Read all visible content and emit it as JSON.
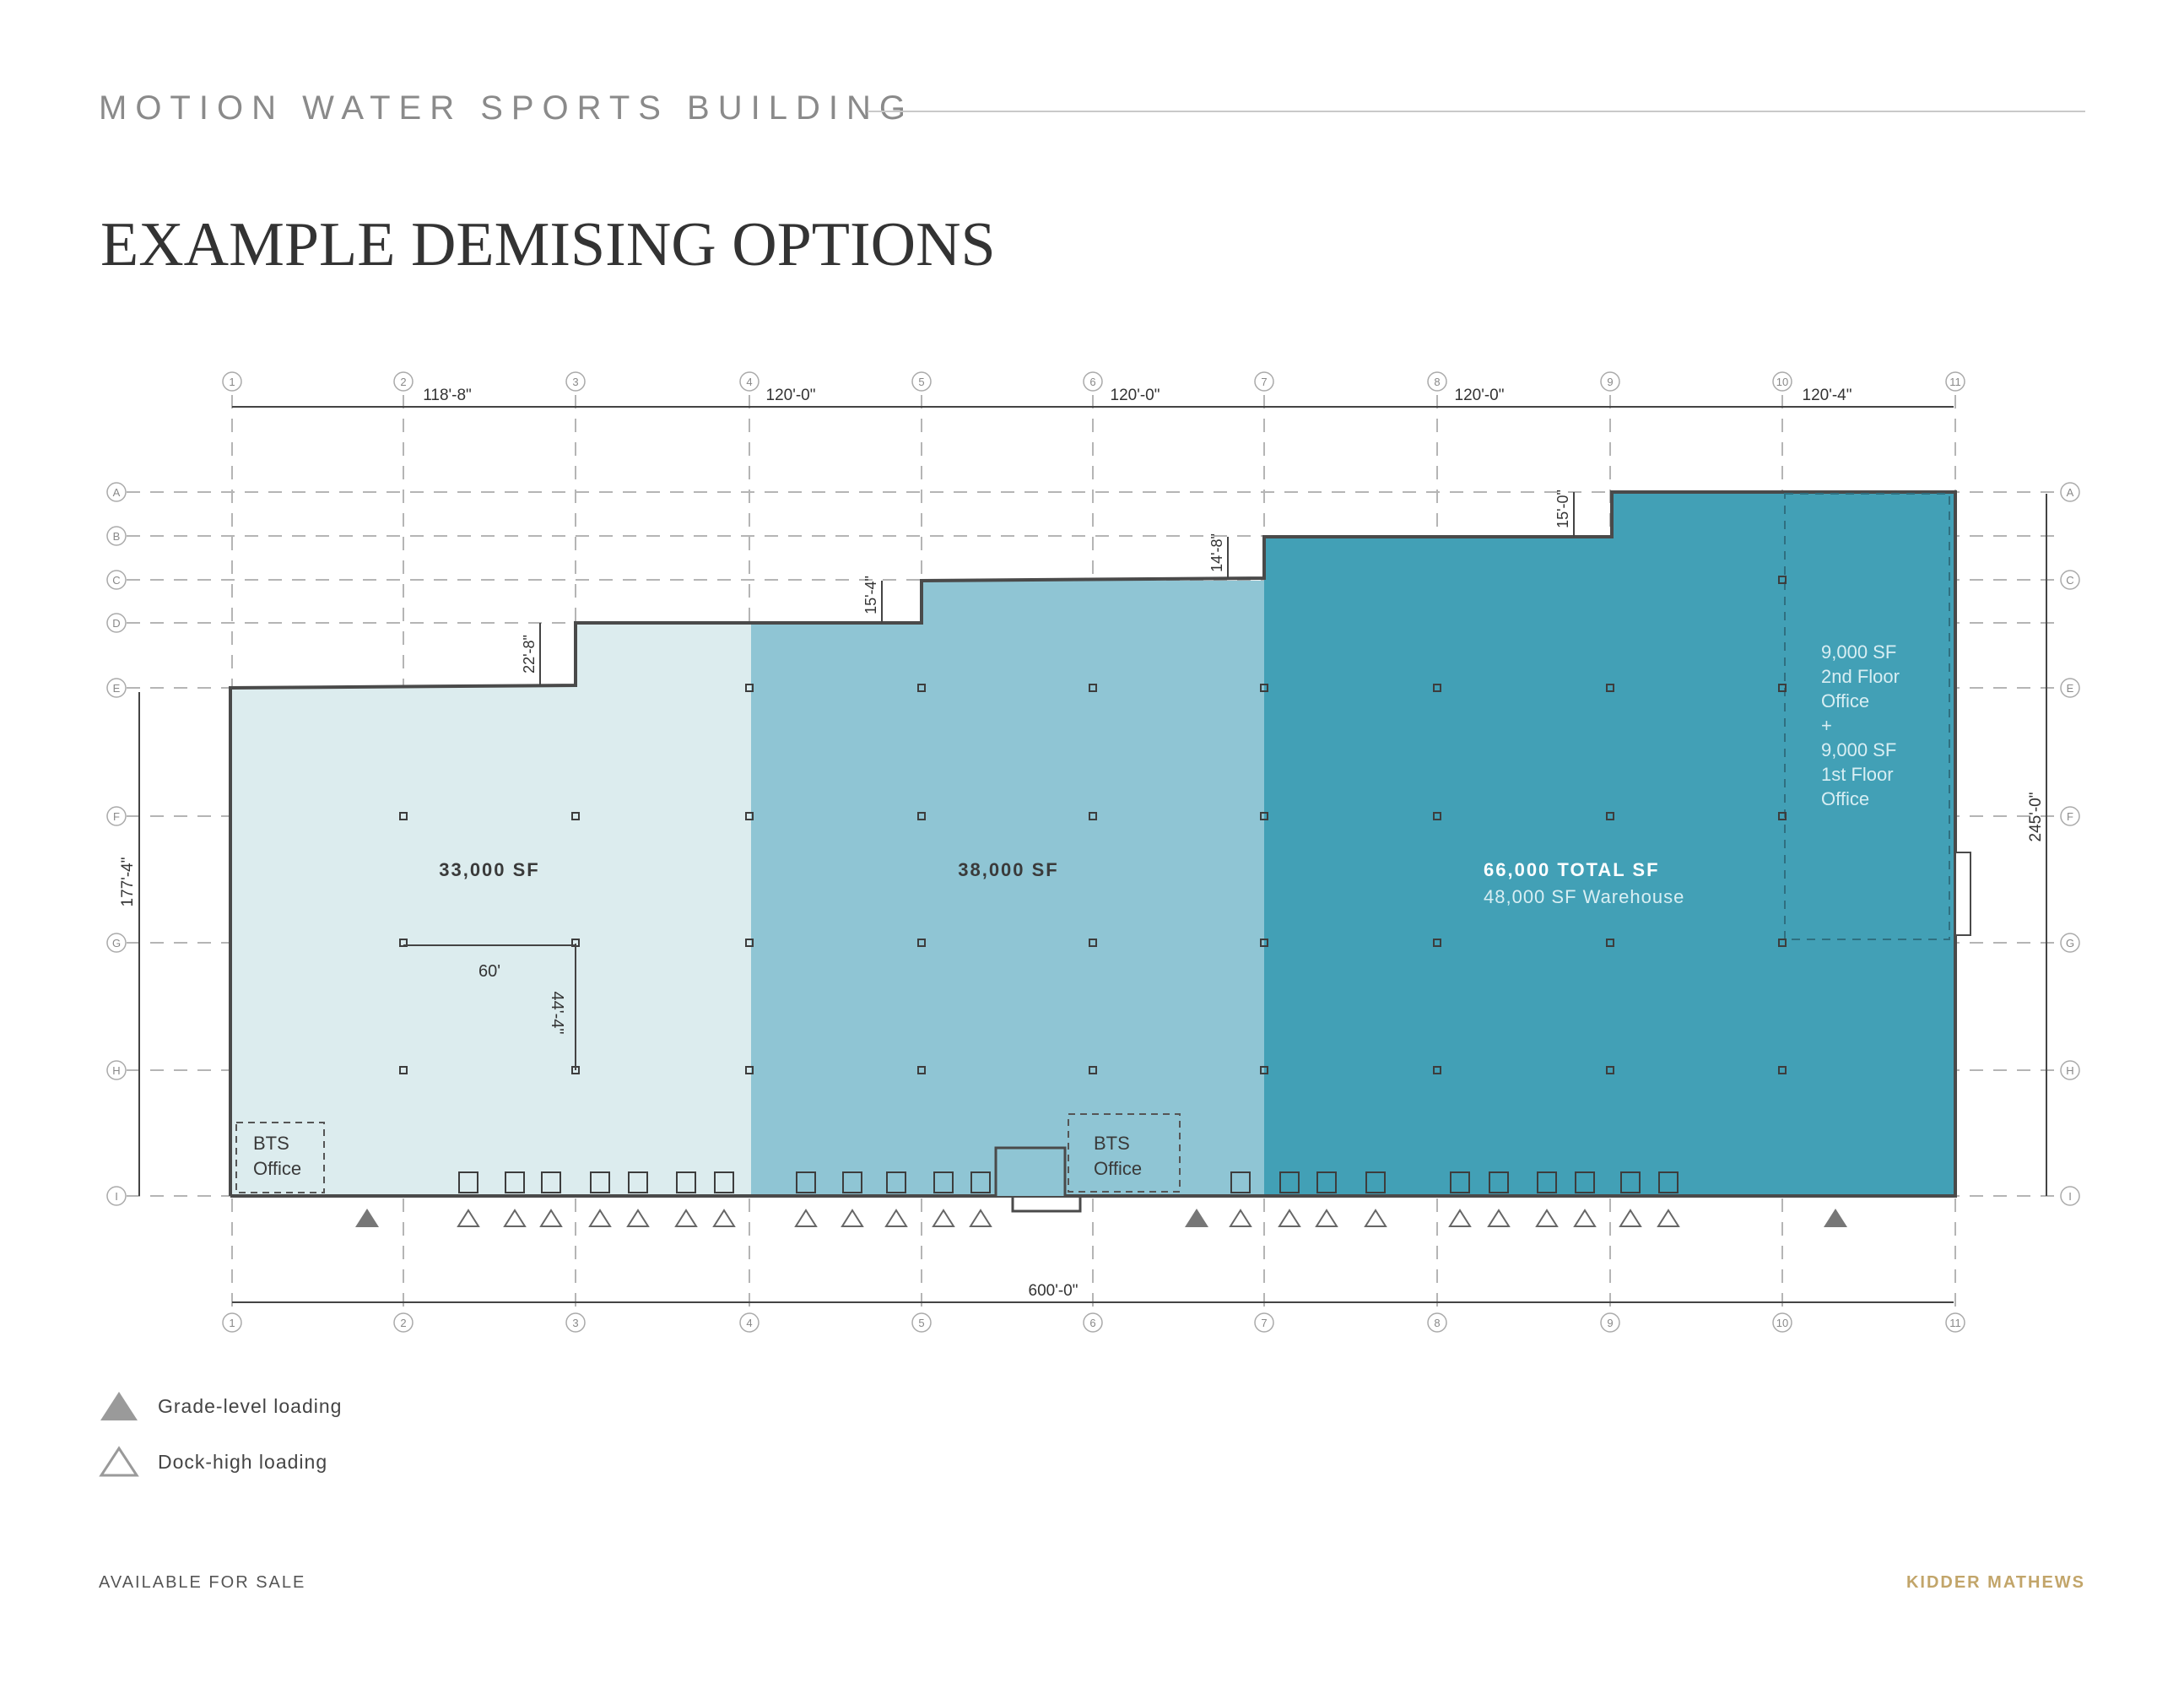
{
  "header": {
    "title": "MOTION WATER SPORTS BUILDING"
  },
  "page_title": "EXAMPLE DEMISING OPTIONS",
  "plan": {
    "column_grid": [
      "1",
      "2",
      "3",
      "4",
      "5",
      "6",
      "7",
      "8",
      "9",
      "10",
      "11"
    ],
    "row_grid": [
      "A",
      "B",
      "C",
      "D",
      "E",
      "F",
      "G",
      "H",
      "I"
    ],
    "top_dims": [
      "118'-8\"",
      "120'-0\"",
      "120'-0\"",
      "120'-0\"",
      "120'-4\""
    ],
    "bottom_dim": "600'-0\"",
    "left_dim": "177'-4\"",
    "right_dim": "245'-0\"",
    "step_dims": [
      "22'-8\"",
      "15'-4\"",
      "14'-8\"",
      "15'-0\""
    ],
    "bay_dims": {
      "width": "60'",
      "depth": "44'-4\""
    },
    "suites": [
      {
        "area": "33,000 SF",
        "color": "#dcecee"
      },
      {
        "area": "38,000 SF",
        "color": "#8fc5d4"
      },
      {
        "area": "66,000 TOTAL SF",
        "sub": "48,000 SF Warehouse",
        "color": "#42a0b6"
      }
    ],
    "office_note": [
      "9,000 SF",
      "2nd Floor",
      "Office",
      "+",
      "9,000 SF",
      "1st Floor",
      "Office"
    ],
    "bts_offices": [
      {
        "line1": "BTS",
        "line2": "Office"
      },
      {
        "line1": "BTS",
        "line2": "Office"
      }
    ]
  },
  "legend": {
    "grade": {
      "label": "Grade-level loading",
      "icon": "filled-triangle-icon",
      "color": "#9a9a9a"
    },
    "dock": {
      "label": "Dock-high loading",
      "icon": "outline-triangle-icon",
      "color": "#9a9a9a"
    }
  },
  "footer": {
    "left": "AVAILABLE FOR SALE",
    "right": "KIDDER MATHEWS"
  }
}
